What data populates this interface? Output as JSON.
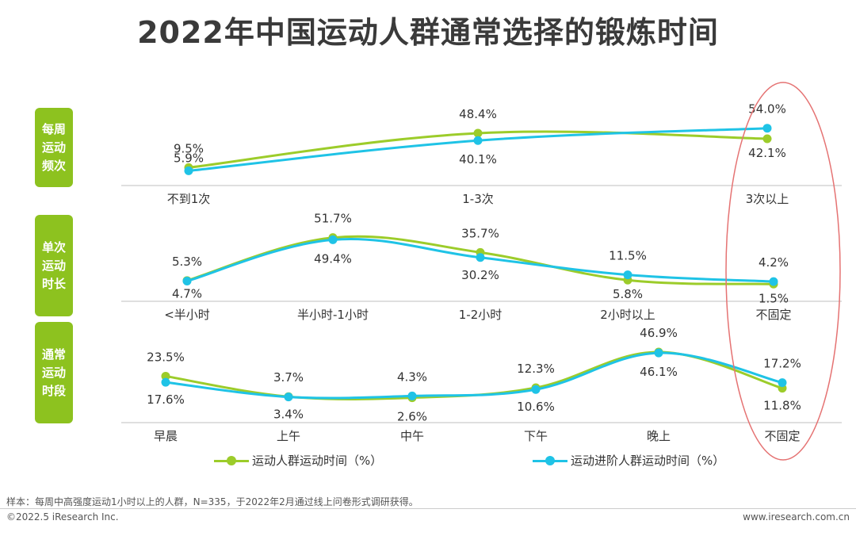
{
  "title": "2022年中国运动人群通常选择的锻炼时间",
  "row_labels": [
    "每周运动频次",
    "单次运动时长",
    "通常运动时段"
  ],
  "row_label_lines": [
    [
      "每周",
      "运动",
      "频次"
    ],
    [
      "单次",
      "运动",
      "时长"
    ],
    [
      "通常",
      "运动",
      "时段"
    ]
  ],
  "legend": {
    "series_a": "运动人群运动时间（%）",
    "series_b": "运动进阶人群运动时间（%）"
  },
  "colors": {
    "series_a": "#9ccc2a",
    "series_b": "#1fc3e6",
    "row_label_bg": "#8dc21f",
    "highlight": "#e57373"
  },
  "chart_data": [
    {
      "type": "line",
      "panel": "每周运动频次",
      "categories": [
        "不到1次",
        "1-3次",
        "3次以上"
      ],
      "series": [
        {
          "name": "运动人群运动时间（%）",
          "values": [
            9.5,
            48.4,
            42.1
          ]
        },
        {
          "name": "运动进阶人群运动时间（%）",
          "values": [
            5.9,
            40.1,
            54.0
          ]
        }
      ],
      "value_labels_a": [
        "9.5%",
        "48.4%",
        "42.1%"
      ],
      "value_labels_b": [
        "5.9%",
        "40.1%",
        "54.0%"
      ],
      "ylim": [
        0,
        60
      ]
    },
    {
      "type": "line",
      "panel": "单次运动时长",
      "categories": [
        "<半小时",
        "半小时-1小时",
        "1-2小时",
        "2小时以上",
        "不固定"
      ],
      "series": [
        {
          "name": "运动人群运动时间（%）",
          "values": [
            5.3,
            51.7,
            35.7,
            5.8,
            1.5
          ]
        },
        {
          "name": "运动进阶人群运动时间（%）",
          "values": [
            4.7,
            49.4,
            30.2,
            11.5,
            4.2
          ]
        }
      ],
      "value_labels_a": [
        "5.3%",
        "51.7%",
        "35.7%",
        "5.8%",
        "1.5%"
      ],
      "value_labels_b": [
        "4.7%",
        "49.4%",
        "30.2%",
        "11.5%",
        "4.2%"
      ],
      "ylim": [
        0,
        60
      ]
    },
    {
      "type": "line",
      "panel": "通常运动时段",
      "categories": [
        "早晨",
        "上午",
        "中午",
        "下午",
        "晚上",
        "不固定"
      ],
      "series": [
        {
          "name": "运动人群运动时间（%）",
          "values": [
            23.5,
            3.7,
            2.6,
            12.3,
            46.9,
            11.8
          ]
        },
        {
          "name": "运动进阶人群运动时间（%）",
          "values": [
            17.6,
            3.4,
            4.3,
            10.6,
            46.1,
            17.2
          ]
        }
      ],
      "value_labels_a": [
        "23.5%",
        "3.7%",
        "2.6%",
        "12.3%",
        "46.9%",
        "11.8%"
      ],
      "value_labels_b": [
        "17.6%",
        "3.4%",
        "4.3%",
        "10.6%",
        "46.1%",
        "17.2%"
      ],
      "ylim": [
        0,
        50
      ]
    }
  ],
  "footer": {
    "note": "样本：每周中高强度运动1小时以上的人群，N=335，于2022年2月通过线上问卷形式调研获得。",
    "copyright": "©2022.5 iResearch Inc.",
    "site": "www.iresearch.com.cn"
  }
}
